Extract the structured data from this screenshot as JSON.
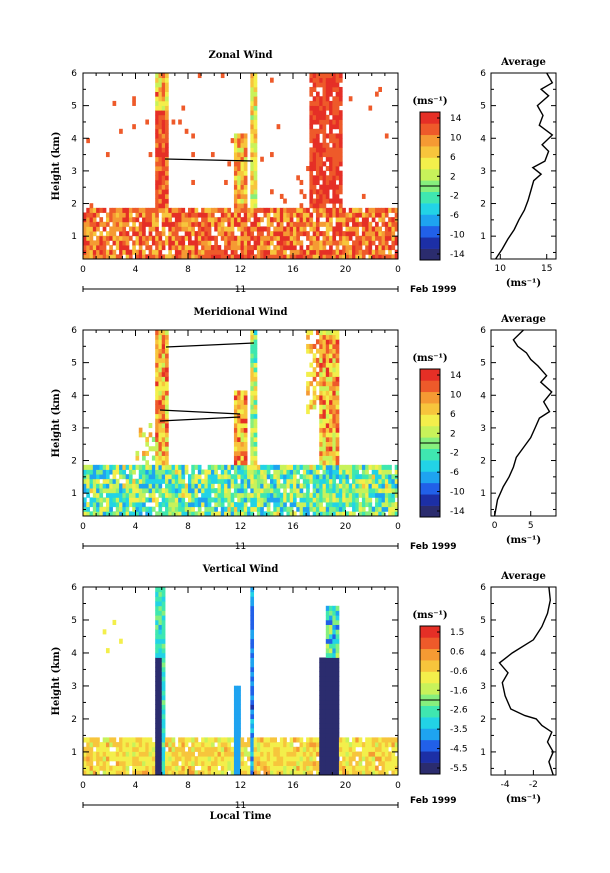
{
  "chart_data": [
    {
      "type": "heatmap",
      "title": "Zonal Wind",
      "ylabel": "Height (km)",
      "x_ticks": [
        "0",
        "4",
        "8",
        "12",
        "16",
        "20",
        "0"
      ],
      "y_ticks": [
        "1",
        "2",
        "3",
        "4",
        "5",
        "6"
      ],
      "xlim": [
        0,
        24
      ],
      "ylim": [
        0.3,
        6
      ],
      "day_label": "11",
      "month_label": "Feb 1999",
      "colorbar": {
        "unit": "(ms⁻¹)",
        "ticks": [
          "14",
          "10",
          "6",
          "2",
          "-2",
          "-6",
          "-10",
          "-14"
        ],
        "range": [
          -16,
          16
        ]
      },
      "profile": {
        "title": "Average",
        "xlabel": "(ms⁻¹)",
        "x_ticks": [
          "10",
          "15"
        ],
        "xlim": [
          9,
          16
        ],
        "points": [
          [
            9.5,
            0.3
          ],
          [
            10.2,
            0.6
          ],
          [
            10.8,
            0.9
          ],
          [
            11.5,
            1.2
          ],
          [
            12.0,
            1.5
          ],
          [
            12.6,
            1.8
          ],
          [
            13.0,
            2.1
          ],
          [
            13.3,
            2.4
          ],
          [
            13.6,
            2.7
          ],
          [
            14.4,
            2.9
          ],
          [
            13.5,
            3.1
          ],
          [
            14.8,
            3.3
          ],
          [
            15.2,
            3.6
          ],
          [
            14.5,
            3.8
          ],
          [
            15.6,
            4.1
          ],
          [
            14.2,
            4.4
          ],
          [
            14.6,
            4.7
          ],
          [
            14.0,
            5.0
          ],
          [
            15.2,
            5.3
          ],
          [
            14.4,
            5.5
          ],
          [
            15.6,
            5.7
          ],
          [
            15.0,
            6.0
          ]
        ]
      }
    },
    {
      "type": "heatmap",
      "title": "Meridional Wind",
      "ylabel": "Height (km)",
      "x_ticks": [
        "0",
        "4",
        "8",
        "12",
        "16",
        "20",
        "0"
      ],
      "y_ticks": [
        "1",
        "2",
        "3",
        "4",
        "5",
        "6"
      ],
      "xlim": [
        0,
        24
      ],
      "ylim": [
        0.3,
        6
      ],
      "day_label": "11",
      "month_label": "Feb 1999",
      "colorbar": {
        "unit": "(ms⁻¹)",
        "ticks": [
          "14",
          "10",
          "6",
          "2",
          "-2",
          "-6",
          "-10",
          "-14"
        ],
        "range": [
          -16,
          16
        ]
      },
      "profile": {
        "title": "Average",
        "xlabel": "(ms⁻¹)",
        "x_ticks": [
          "0",
          "5"
        ],
        "xlim": [
          -0.5,
          8.5
        ],
        "points": [
          [
            0.0,
            0.3
          ],
          [
            0.4,
            0.8
          ],
          [
            1.2,
            1.2
          ],
          [
            2.0,
            1.5
          ],
          [
            2.6,
            1.8
          ],
          [
            3.0,
            2.1
          ],
          [
            4.0,
            2.4
          ],
          [
            5.0,
            2.7
          ],
          [
            5.6,
            3.0
          ],
          [
            6.2,
            3.3
          ],
          [
            7.6,
            3.5
          ],
          [
            6.8,
            3.8
          ],
          [
            7.9,
            4.1
          ],
          [
            6.4,
            4.4
          ],
          [
            7.2,
            4.6
          ],
          [
            6.0,
            4.9
          ],
          [
            5.0,
            5.1
          ],
          [
            4.4,
            5.3
          ],
          [
            3.2,
            5.5
          ],
          [
            2.6,
            5.7
          ],
          [
            4.0,
            6.0
          ]
        ]
      }
    },
    {
      "type": "heatmap",
      "title": "Vertical Wind",
      "ylabel": "Height (km)",
      "xlabel": "Local Time",
      "x_ticks": [
        "0",
        "4",
        "8",
        "12",
        "16",
        "20",
        "0"
      ],
      "y_ticks": [
        "1",
        "2",
        "3",
        "4",
        "5",
        "6"
      ],
      "xlim": [
        0,
        24
      ],
      "ylim": [
        0.3,
        6
      ],
      "day_label": "11",
      "month_label": "Feb 1999",
      "colorbar": {
        "unit": "(ms⁻¹)",
        "ticks": [
          "1.5",
          "0.6",
          "-0.6",
          "-1.6",
          "-2.6",
          "-3.5",
          "-4.5",
          "-5.5"
        ],
        "range": [
          -6.0,
          2.0
        ]
      },
      "profile": {
        "title": "Average",
        "xlabel": "(ms⁻¹)",
        "x_ticks": [
          "-4",
          "-2"
        ],
        "xlim": [
          -5,
          -0.4
        ],
        "points": [
          [
            -0.6,
            0.3
          ],
          [
            -0.9,
            0.7
          ],
          [
            -0.6,
            1.0
          ],
          [
            -1.0,
            1.3
          ],
          [
            -0.7,
            1.6
          ],
          [
            -1.4,
            1.8
          ],
          [
            -1.8,
            2.0
          ],
          [
            -2.6,
            2.1
          ],
          [
            -3.6,
            2.3
          ],
          [
            -4.0,
            2.7
          ],
          [
            -4.2,
            3.1
          ],
          [
            -3.8,
            3.4
          ],
          [
            -4.4,
            3.7
          ],
          [
            -3.5,
            4.0
          ],
          [
            -2.0,
            4.4
          ],
          [
            -1.4,
            4.8
          ],
          [
            -1.0,
            5.2
          ],
          [
            -0.8,
            5.6
          ],
          [
            -0.9,
            6.0
          ]
        ]
      }
    }
  ]
}
